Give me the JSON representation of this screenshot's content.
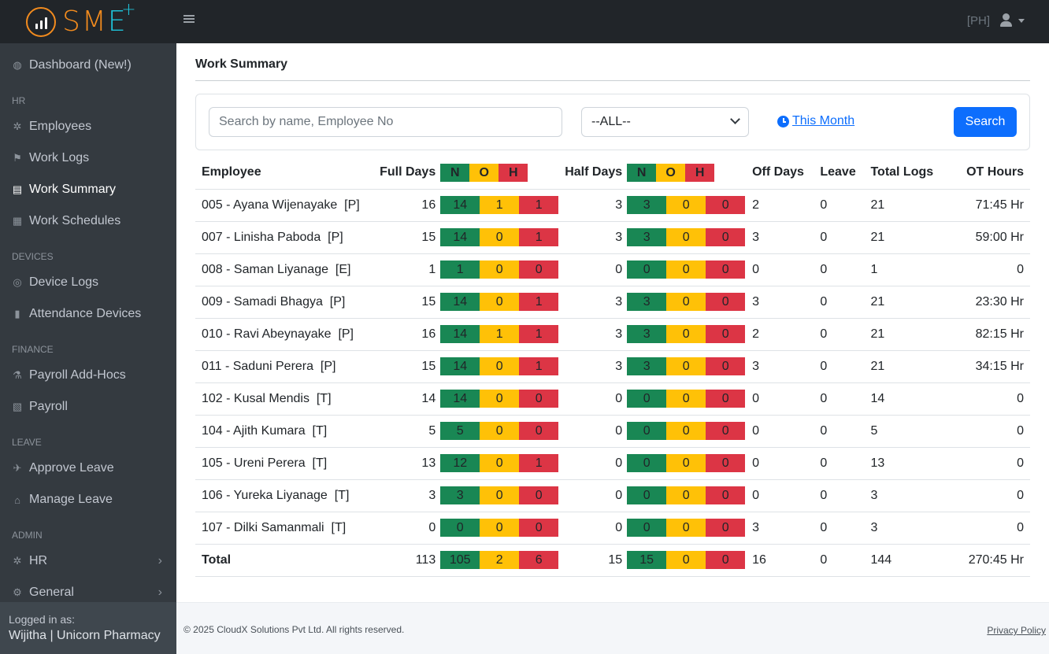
{
  "brand": {
    "name_part1": "SM",
    "name_part2": "E",
    "plus": "+"
  },
  "sidebar": {
    "items": [
      {
        "type": "item",
        "label": "Dashboard (New!)",
        "icon": "dashboard-icon",
        "glyph": "◍"
      },
      {
        "type": "header",
        "label": "HR"
      },
      {
        "type": "item",
        "label": "Employees",
        "icon": "employees-icon",
        "glyph": "✲"
      },
      {
        "type": "item",
        "label": "Work Logs",
        "icon": "work-logs-icon",
        "glyph": "⚑"
      },
      {
        "type": "item",
        "label": "Work Summary",
        "icon": "clipboard-icon",
        "glyph": "▤",
        "active": true
      },
      {
        "type": "item",
        "label": "Work Schedules",
        "icon": "calendar-icon",
        "glyph": "▦"
      },
      {
        "type": "header",
        "label": "DEVICES"
      },
      {
        "type": "item",
        "label": "Device Logs",
        "icon": "fingerprint-icon",
        "glyph": "◎"
      },
      {
        "type": "item",
        "label": "Attendance Devices",
        "icon": "device-icon",
        "glyph": "▮"
      },
      {
        "type": "header",
        "label": "FINANCE"
      },
      {
        "type": "item",
        "label": "Payroll Add-Hocs",
        "icon": "hand-money-icon",
        "glyph": "⚗"
      },
      {
        "type": "item",
        "label": "Payroll",
        "icon": "file-invoice-icon",
        "glyph": "▧"
      },
      {
        "type": "header",
        "label": "LEAVE"
      },
      {
        "type": "item",
        "label": "Approve Leave",
        "icon": "plane-icon",
        "glyph": "✈"
      },
      {
        "type": "item",
        "label": "Manage Leave",
        "icon": "house-icon",
        "glyph": "⌂"
      },
      {
        "type": "header",
        "label": "ADMIN"
      },
      {
        "type": "item",
        "label": "HR",
        "icon": "employees-icon",
        "glyph": "✲",
        "chevron": true
      },
      {
        "type": "item",
        "label": "General",
        "icon": "gear-icon",
        "glyph": "⚙",
        "chevron": true
      }
    ],
    "logged_in_label": "Logged in as:",
    "logged_in_user": "Wijitha | Unicorn Pharmacy"
  },
  "topbar": {
    "user_initials": "[PH]"
  },
  "page": {
    "title": "Work Summary"
  },
  "filters": {
    "search_placeholder": "Search by name, Employee No",
    "select_value": "--ALL--",
    "period_link": "This Month",
    "search_button": "Search"
  },
  "table": {
    "headers": {
      "employee": "Employee",
      "full_days": "Full Days",
      "half_days": "Half Days",
      "n": "N",
      "o": "O",
      "h": "H",
      "off_days": "Off Days",
      "leave": "Leave",
      "total_logs": "Total Logs",
      "ot_hours": "OT Hours"
    },
    "rows": [
      {
        "employee": "005 - Ayana Wijenayake  [P]",
        "full": "16",
        "fn": "14",
        "fo": "1",
        "fh": "1",
        "half": "3",
        "hn": "3",
        "ho": "0",
        "hh": "0",
        "off": "2",
        "leave": "0",
        "logs": "21",
        "ot": "71:45 Hr"
      },
      {
        "employee": "007 - Linisha Paboda  [P]",
        "full": "15",
        "fn": "14",
        "fo": "0",
        "fh": "1",
        "half": "3",
        "hn": "3",
        "ho": "0",
        "hh": "0",
        "off": "3",
        "leave": "0",
        "logs": "21",
        "ot": "59:00 Hr"
      },
      {
        "employee": "008 - Saman Liyanage  [E]",
        "full": "1",
        "fn": "1",
        "fo": "0",
        "fh": "0",
        "half": "0",
        "hn": "0",
        "ho": "0",
        "hh": "0",
        "off": "0",
        "leave": "0",
        "logs": "1",
        "ot": "0"
      },
      {
        "employee": "009 - Samadi Bhagya  [P]",
        "full": "15",
        "fn": "14",
        "fo": "0",
        "fh": "1",
        "half": "3",
        "hn": "3",
        "ho": "0",
        "hh": "0",
        "off": "3",
        "leave": "0",
        "logs": "21",
        "ot": "23:30 Hr"
      },
      {
        "employee": "010 - Ravi Abeynayake  [P]",
        "full": "16",
        "fn": "14",
        "fo": "1",
        "fh": "1",
        "half": "3",
        "hn": "3",
        "ho": "0",
        "hh": "0",
        "off": "2",
        "leave": "0",
        "logs": "21",
        "ot": "82:15 Hr"
      },
      {
        "employee": "011 - Saduni Perera  [P]",
        "full": "15",
        "fn": "14",
        "fo": "0",
        "fh": "1",
        "half": "3",
        "hn": "3",
        "ho": "0",
        "hh": "0",
        "off": "3",
        "leave": "0",
        "logs": "21",
        "ot": "34:15 Hr"
      },
      {
        "employee": "102 - Kusal Mendis  [T]",
        "full": "14",
        "fn": "14",
        "fo": "0",
        "fh": "0",
        "half": "0",
        "hn": "0",
        "ho": "0",
        "hh": "0",
        "off": "0",
        "leave": "0",
        "logs": "14",
        "ot": "0"
      },
      {
        "employee": "104 - Ajith Kumara  [T]",
        "full": "5",
        "fn": "5",
        "fo": "0",
        "fh": "0",
        "half": "0",
        "hn": "0",
        "ho": "0",
        "hh": "0",
        "off": "0",
        "leave": "0",
        "logs": "5",
        "ot": "0"
      },
      {
        "employee": "105 - Ureni Perera  [T]",
        "full": "13",
        "fn": "12",
        "fo": "0",
        "fh": "1",
        "half": "0",
        "hn": "0",
        "ho": "0",
        "hh": "0",
        "off": "0",
        "leave": "0",
        "logs": "13",
        "ot": "0"
      },
      {
        "employee": "106 - Yureka Liyanage  [T]",
        "full": "3",
        "fn": "3",
        "fo": "0",
        "fh": "0",
        "half": "0",
        "hn": "0",
        "ho": "0",
        "hh": "0",
        "off": "0",
        "leave": "0",
        "logs": "3",
        "ot": "0"
      },
      {
        "employee": "107 - Dilki Samanmali  [T]",
        "full": "0",
        "fn": "0",
        "fo": "0",
        "fh": "0",
        "half": "0",
        "hn": "0",
        "ho": "0",
        "hh": "0",
        "off": "3",
        "leave": "0",
        "logs": "3",
        "ot": "0"
      }
    ],
    "total": {
      "employee": "Total",
      "full": "113",
      "fn": "105",
      "fo": "2",
      "fh": "6",
      "half": "15",
      "hn": "15",
      "ho": "0",
      "hh": "0",
      "off": "16",
      "leave": "0",
      "logs": "144",
      "ot": "270:45 Hr"
    }
  },
  "footer": {
    "copyright": "© 2025 CloudX Solutions Pvt Ltd. All rights reserved.",
    "privacy": "Privacy Policy"
  },
  "colors": {
    "n": "#198754",
    "o": "#ffc107",
    "h": "#dc3545",
    "link": "#0d6efd",
    "sidebar": "#343a40",
    "topbar": "#212529"
  }
}
